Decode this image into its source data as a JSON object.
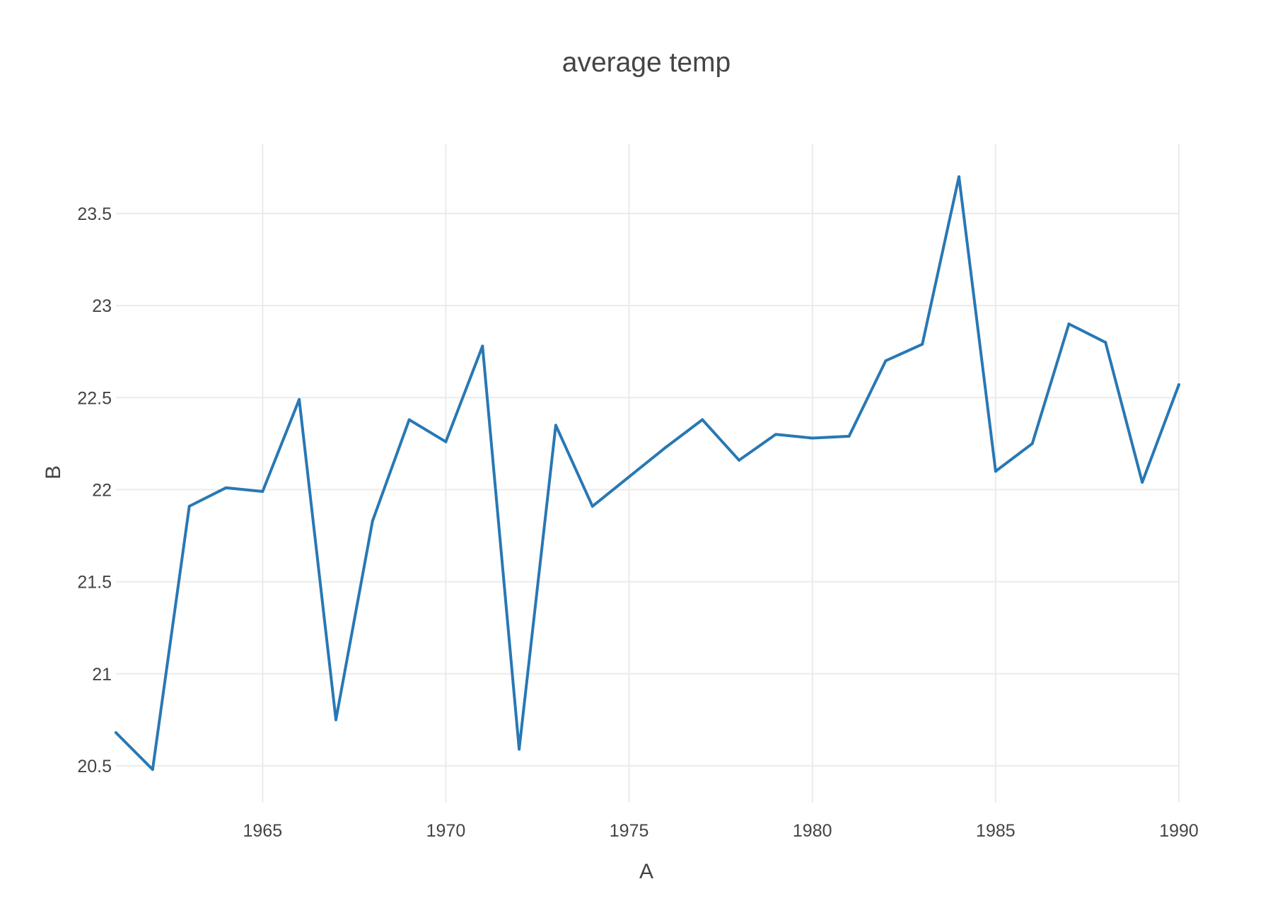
{
  "chart_data": {
    "type": "line",
    "title": "average temp",
    "xlabel": "A",
    "ylabel": "B",
    "xlim": [
      1961,
      1990
    ],
    "ylim": [
      20.3,
      23.88
    ],
    "x_ticks": [
      1965,
      1970,
      1975,
      1980,
      1985,
      1990
    ],
    "y_ticks": [
      20.5,
      21,
      21.5,
      22,
      22.5,
      23,
      23.5
    ],
    "grid": true,
    "legend": "none",
    "colors": {
      "line": "#2878b4",
      "grid": "#ebebeb",
      "text": "#444444"
    },
    "series": [
      {
        "x": [
          1961,
          1962,
          1963,
          1964,
          1965,
          1966,
          1967,
          1968,
          1969,
          1970,
          1971,
          1972,
          1973,
          1974,
          1975,
          1976,
          1977,
          1978,
          1979,
          1980,
          1981,
          1982,
          1983,
          1984,
          1985,
          1986,
          1987,
          1988,
          1989,
          1990
        ],
        "values": [
          20.68,
          20.48,
          21.91,
          22.01,
          21.99,
          22.49,
          20.75,
          21.83,
          22.38,
          22.26,
          22.78,
          20.59,
          22.35,
          21.91,
          22.07,
          22.23,
          22.38,
          22.16,
          22.3,
          22.28,
          22.29,
          22.7,
          22.79,
          23.7,
          22.1,
          22.25,
          22.9,
          22.8,
          22.04,
          22.57
        ]
      }
    ]
  }
}
